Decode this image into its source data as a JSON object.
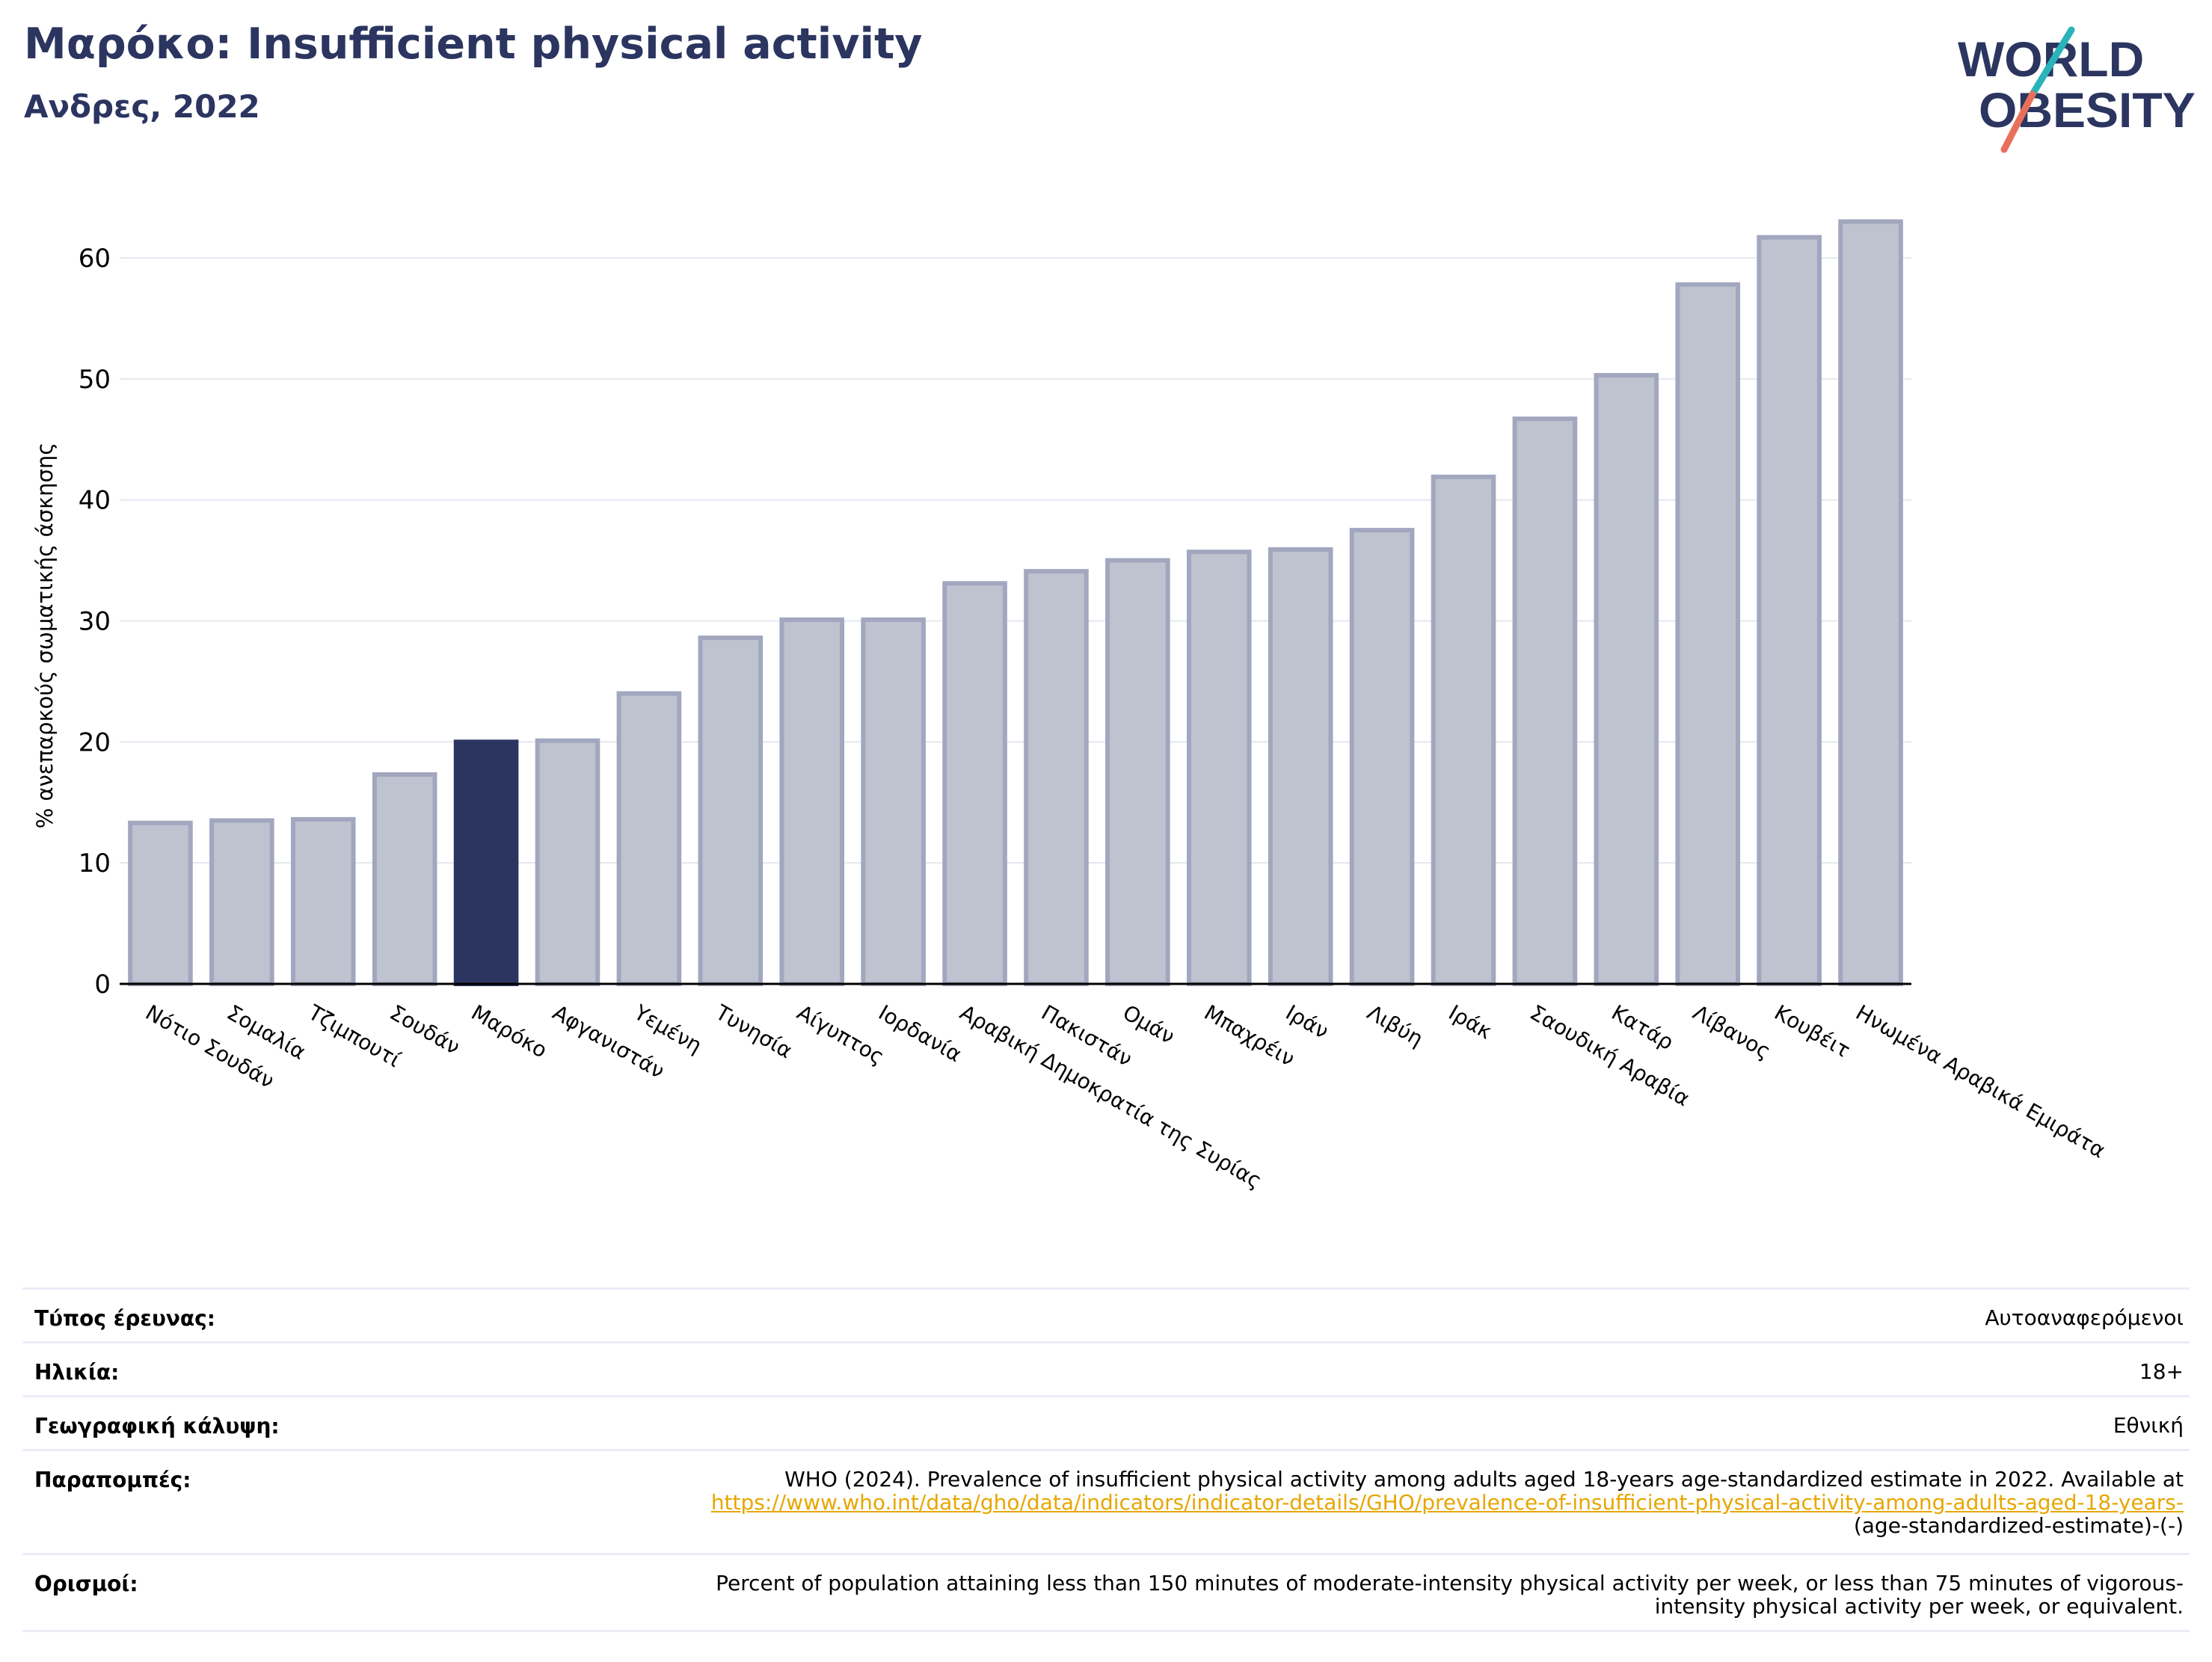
{
  "header": {
    "title": "Μαρόκο: Insufficient physical activity",
    "subtitle": "Ανδρες, 2022"
  },
  "logo": {
    "line1": "WORLD",
    "line2": "OBESITY",
    "colors": {
      "text": "#2b3560",
      "slash_top": "#2ab3b8",
      "slash_bottom": "#e8705b"
    }
  },
  "chart_data": {
    "type": "bar",
    "ylabel": "% ανεπαρκούς σωματικής άσκησης",
    "ylim": [
      0,
      65
    ],
    "yticks": [
      0,
      10,
      20,
      30,
      40,
      50,
      60
    ],
    "grid": true,
    "highlight": "Μαρόκο",
    "colors": {
      "bar": "#bfc2cf",
      "bar_edge": "#a2a7bf",
      "highlight": "#2b3560",
      "grid": "#e5e7ef"
    },
    "categories": [
      "Νότιο Σουδάν",
      "Σομαλία",
      "Τζιμπουτί",
      "Σουδάν",
      "Μαρόκο",
      "Αφγανιστάν",
      "Υεμένη",
      "Τυνησία",
      "Αίγυπτος",
      "Ιορδανία",
      "Αραβική Δημοκρατία της Συρίας",
      "Πακιστάν",
      "Ομάν",
      "Μπαχρέιν",
      "Ιράν",
      "Λιβύη",
      "Ιράκ",
      "Σαουδική Αραβία",
      "Κατάρ",
      "Λίβανος",
      "Κουβέιτ",
      "Ηνωμένα Αραβικά Εμιράτα"
    ],
    "values": [
      13.3,
      13.5,
      13.6,
      17.3,
      20.0,
      20.1,
      24.0,
      28.6,
      30.1,
      30.1,
      33.1,
      34.1,
      35.0,
      35.7,
      35.9,
      37.5,
      41.9,
      46.7,
      50.3,
      57.8,
      61.7,
      63.0
    ]
  },
  "info": {
    "survey_type_label": "Τύπος έρευνας:",
    "survey_type_value": "Αυτοαναφερόμενοι",
    "age_label": "Ηλικία:",
    "age_value": "18+",
    "coverage_label": "Γεωγραφική κάλυψη:",
    "coverage_value": "Εθνική",
    "references_label": "Παραπομπές:",
    "references_text": "WHO (2024). Prevalence of insufficient physical activity among adults aged 18-years age-standardized estimate in 2022. Available at",
    "references_link": "https://www.who.int/data/gho/data/indicators/indicator-details/GHO/prevalence-of-insufficient-physical-activity-among-adults-aged-18-years-",
    "references_tail": "(age-standardized-estimate)-(-)",
    "definitions_label": "Ορισμοί:",
    "definitions_line1": "Percent of population attaining less than 150 minutes of moderate-intensity physical activity per week, or less than 75 minutes of vigorous-",
    "definitions_line2": "intensity physical activity per week, or equivalent."
  }
}
